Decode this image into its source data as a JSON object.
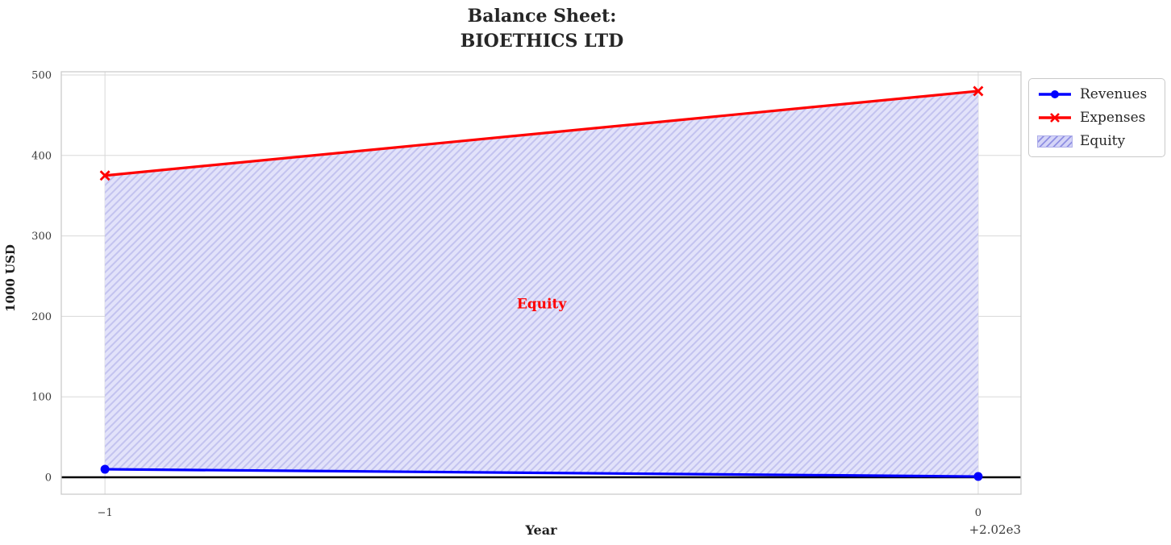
{
  "title": {
    "line1": "Balance Sheet:",
    "line2": "BIOETHICS LTD"
  },
  "chart_data": {
    "type": "line",
    "title": "Balance Sheet: BIOETHICS LTD",
    "x": [
      2019,
      2020
    ],
    "xticks": [
      2019,
      2020
    ],
    "xtick_labels": [
      "−1",
      "0"
    ],
    "x_offset_label": "+2.02e3",
    "yticks": [
      0,
      100,
      200,
      300,
      400,
      500
    ],
    "xlabel": "Year",
    "ylabel": "1000 USD",
    "xlim": [
      2018.95,
      2020.049
    ],
    "ylim": [
      -21,
      504
    ],
    "grid": true,
    "series": [
      {
        "name": "Revenues",
        "x": [
          2019,
          2020
        ],
        "values": [
          10,
          1
        ],
        "color": "#0000ff",
        "marker": "o"
      },
      {
        "name": "Expenses",
        "x": [
          2019,
          2020
        ],
        "values": [
          375,
          480
        ],
        "color": "#ff0000",
        "marker": "x"
      }
    ],
    "fill_between": {
      "label": "Equity",
      "lower_series": "Revenues",
      "upper_series": "Expenses",
      "fill_color": "#e2e2fa",
      "hatch": "///",
      "hatch_color": "#c3c3ef",
      "legend_fill_color": "#d4d4f7",
      "legend_hatch_color": "#8f8fe3"
    },
    "annotation": {
      "text": "Equity",
      "color": "#ff0000",
      "x": 2019.5,
      "y": 216
    },
    "zero_line": {
      "y": 0,
      "color": "#000000"
    },
    "legend_position": "outside upper right",
    "grid_color": "#d8d8d8",
    "spine_color": "#cbcbcb",
    "text_color": "#262626"
  }
}
